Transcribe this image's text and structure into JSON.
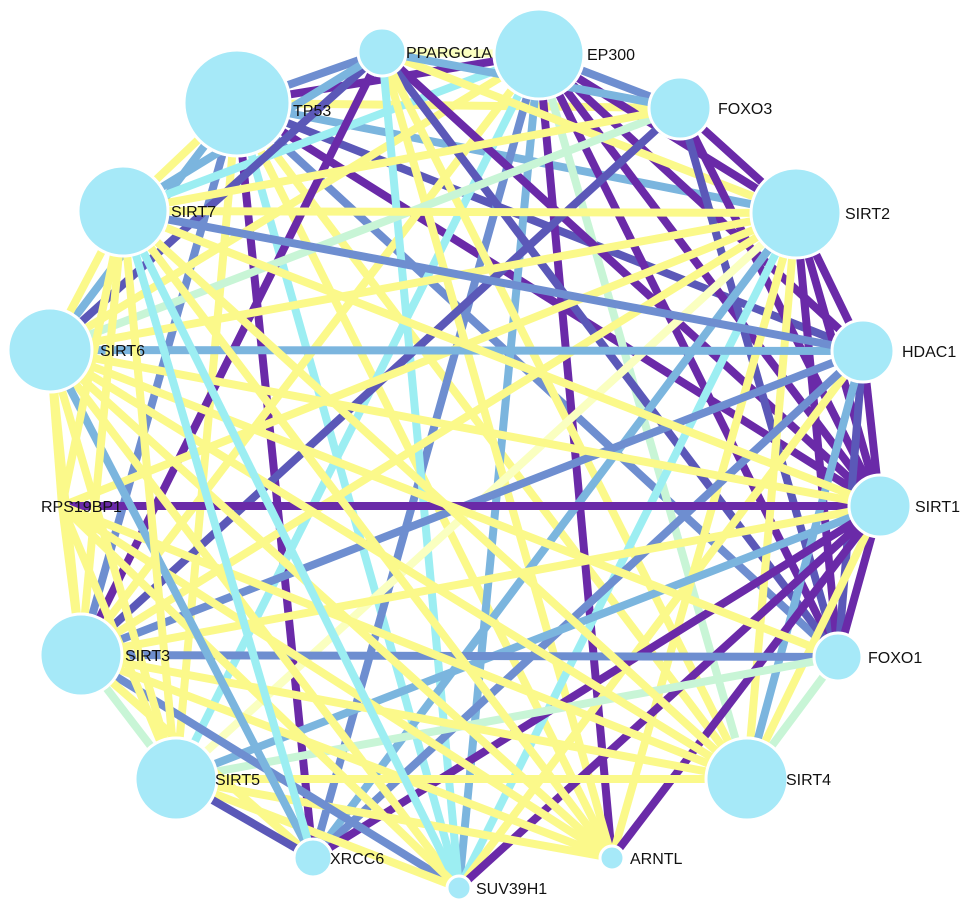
{
  "palette": {
    "node_fill": "#a6e9f8",
    "node_stroke": "#ffffff",
    "edge_colors": {
      "purple": "#6a2aa8",
      "indigo": "#5b58b8",
      "steel": "#6e8ed0",
      "sky": "#7bb5de",
      "cyan": "#9ceef2",
      "mint": "#c8f5d6",
      "cream": "#faffc0",
      "yellow": "#fbf98a"
    }
  },
  "nodes": [
    {
      "id": "PPARGC1A",
      "label": "PPARGC1A"
    },
    {
      "id": "EP300",
      "label": "EP300"
    },
    {
      "id": "FOXO3",
      "label": "FOXO3"
    },
    {
      "id": "SIRT2",
      "label": "SIRT2"
    },
    {
      "id": "HDAC1",
      "label": "HDAC1"
    },
    {
      "id": "SIRT1",
      "label": "SIRT1"
    },
    {
      "id": "FOXO1",
      "label": "FOXO1"
    },
    {
      "id": "SIRT4",
      "label": "SIRT4"
    },
    {
      "id": "ARNTL",
      "label": "ARNTL"
    },
    {
      "id": "SUV39H1",
      "label": "SUV39H1"
    },
    {
      "id": "XRCC6",
      "label": "XRCC6"
    },
    {
      "id": "SIRT5",
      "label": "SIRT5"
    },
    {
      "id": "SIRT3",
      "label": "SIRT3"
    },
    {
      "id": "RPS19BP1",
      "label": "RPS19BP1"
    },
    {
      "id": "SIRT6",
      "label": "SIRT6"
    },
    {
      "id": "SIRT7",
      "label": "SIRT7"
    },
    {
      "id": "TP53",
      "label": "TP53"
    }
  ],
  "edges": [
    [
      "TP53",
      "EP300",
      "purple"
    ],
    [
      "TP53",
      "SIRT1",
      "purple"
    ],
    [
      "TP53",
      "SIRT2",
      "sky"
    ],
    [
      "TP53",
      "HDAC1",
      "indigo"
    ],
    [
      "TP53",
      "FOXO3",
      "yellow"
    ],
    [
      "TP53",
      "FOXO1",
      "steel"
    ],
    [
      "TP53",
      "SIRT4",
      "yellow"
    ],
    [
      "TP53",
      "ARNTL",
      "yellow"
    ],
    [
      "TP53",
      "SUV39H1",
      "cyan"
    ],
    [
      "TP53",
      "XRCC6",
      "purple"
    ],
    [
      "TP53",
      "SIRT7",
      "yellow"
    ],
    [
      "TP53",
      "SIRT6",
      "sky"
    ],
    [
      "TP53",
      "SIRT3",
      "steel"
    ],
    [
      "TP53",
      "PPARGC1A",
      "steel"
    ],
    [
      "TP53",
      "SIRT5",
      "yellow"
    ],
    [
      "EP300",
      "SIRT1",
      "purple"
    ],
    [
      "EP300",
      "SIRT2",
      "purple"
    ],
    [
      "EP300",
      "FOXO3",
      "steel"
    ],
    [
      "EP300",
      "HDAC1",
      "purple"
    ],
    [
      "EP300",
      "FOXO1",
      "purple"
    ],
    [
      "EP300",
      "ARNTL",
      "purple"
    ],
    [
      "EP300",
      "SIRT7",
      "cyan"
    ],
    [
      "EP300",
      "SIRT6",
      "yellow"
    ],
    [
      "EP300",
      "SIRT3",
      "yellow"
    ],
    [
      "EP300",
      "XRCC6",
      "steel"
    ],
    [
      "EP300",
      "SUV39H1",
      "sky"
    ],
    [
      "EP300",
      "SIRT4",
      "mint"
    ],
    [
      "EP300",
      "PPARGC1A",
      "cream"
    ],
    [
      "EP300",
      "SIRT5",
      "cyan"
    ],
    [
      "PPARGC1A",
      "SIRT1",
      "purple"
    ],
    [
      "PPARGC1A",
      "SIRT2",
      "yellow"
    ],
    [
      "PPARGC1A",
      "FOXO1",
      "indigo"
    ],
    [
      "PPARGC1A",
      "FOXO3",
      "sky"
    ],
    [
      "PPARGC1A",
      "SIRT3",
      "purple"
    ],
    [
      "PPARGC1A",
      "SIRT4",
      "yellow"
    ],
    [
      "PPARGC1A",
      "SIRT6",
      "indigo"
    ],
    [
      "PPARGC1A",
      "SIRT7",
      "sky"
    ],
    [
      "PPARGC1A",
      "ARNTL",
      "yellow"
    ],
    [
      "PPARGC1A",
      "SUV39H1",
      "cyan"
    ],
    [
      "FOXO3",
      "SIRT1",
      "purple"
    ],
    [
      "FOXO3",
      "SIRT2",
      "purple"
    ],
    [
      "FOXO3",
      "FOXO1",
      "indigo"
    ],
    [
      "FOXO3",
      "SIRT3",
      "indigo"
    ],
    [
      "FOXO3",
      "SIRT6",
      "mint"
    ],
    [
      "FOXO3",
      "SIRT7",
      "yellow"
    ],
    [
      "SIRT2",
      "SIRT1",
      "purple"
    ],
    [
      "SIRT2",
      "HDAC1",
      "purple"
    ],
    [
      "SIRT2",
      "FOXO1",
      "purple"
    ],
    [
      "SIRT2",
      "SIRT7",
      "yellow"
    ],
    [
      "SIRT2",
      "SIRT6",
      "yellow"
    ],
    [
      "SIRT2",
      "SIRT3",
      "yellow"
    ],
    [
      "SIRT2",
      "SIRT5",
      "cream"
    ],
    [
      "SIRT2",
      "SIRT4",
      "yellow"
    ],
    [
      "SIRT2",
      "ARNTL",
      "yellow"
    ],
    [
      "SIRT2",
      "XRCC6",
      "sky"
    ],
    [
      "SIRT2",
      "SUV39H1",
      "cyan"
    ],
    [
      "SIRT2",
      "RPS19BP1",
      "yellow"
    ],
    [
      "HDAC1",
      "SIRT1",
      "purple"
    ],
    [
      "HDAC1",
      "SIRT6",
      "sky"
    ],
    [
      "HDAC1",
      "SIRT3",
      "steel"
    ],
    [
      "HDAC1",
      "FOXO1",
      "indigo"
    ],
    [
      "HDAC1",
      "SUV39H1",
      "yellow"
    ],
    [
      "HDAC1",
      "SIRT7",
      "steel"
    ],
    [
      "HDAC1",
      "XRCC6",
      "steel"
    ],
    [
      "HDAC1",
      "SIRT4",
      "sky"
    ],
    [
      "SIRT1",
      "RPS19BP1",
      "purple"
    ],
    [
      "SIRT1",
      "FOXO1",
      "purple"
    ],
    [
      "SIRT1",
      "SIRT3",
      "yellow"
    ],
    [
      "SIRT1",
      "SIRT6",
      "yellow"
    ],
    [
      "SIRT1",
      "SIRT7",
      "yellow"
    ],
    [
      "SIRT1",
      "SIRT5",
      "sky"
    ],
    [
      "SIRT1",
      "SIRT4",
      "yellow"
    ],
    [
      "SIRT1",
      "ARNTL",
      "purple"
    ],
    [
      "SIRT1",
      "XRCC6",
      "purple"
    ],
    [
      "SIRT1",
      "SUV39H1",
      "purple"
    ],
    [
      "FOXO1",
      "SIRT3",
      "steel"
    ],
    [
      "FOXO1",
      "SIRT6",
      "yellow"
    ],
    [
      "FOXO1",
      "SIRT4",
      "mint"
    ],
    [
      "FOXO1",
      "SIRT5",
      "mint"
    ],
    [
      "SIRT4",
      "SIRT3",
      "yellow"
    ],
    [
      "SIRT4",
      "SIRT6",
      "yellow"
    ],
    [
      "SIRT4",
      "SIRT7",
      "yellow"
    ],
    [
      "SIRT4",
      "SIRT5",
      "yellow"
    ],
    [
      "SIRT4",
      "RPS19BP1",
      "yellow"
    ],
    [
      "ARNTL",
      "SIRT6",
      "yellow"
    ],
    [
      "ARNTL",
      "SIRT3",
      "yellow"
    ],
    [
      "ARNTL",
      "SIRT7",
      "yellow"
    ],
    [
      "ARNTL",
      "SIRT5",
      "yellow"
    ],
    [
      "ARNTL",
      "RPS19BP1",
      "yellow"
    ],
    [
      "SUV39H1",
      "SIRT3",
      "steel"
    ],
    [
      "SUV39H1",
      "SIRT6",
      "yellow"
    ],
    [
      "SUV39H1",
      "SIRT7",
      "cyan"
    ],
    [
      "SUV39H1",
      "RPS19BP1",
      "yellow"
    ],
    [
      "SUV39H1",
      "SIRT5",
      "yellow"
    ],
    [
      "XRCC6",
      "SIRT6",
      "sky"
    ],
    [
      "XRCC6",
      "SIRT3",
      "yellow"
    ],
    [
      "XRCC6",
      "SIRT7",
      "cyan"
    ],
    [
      "XRCC6",
      "SIRT5",
      "indigo"
    ],
    [
      "SIRT5",
      "SIRT6",
      "yellow"
    ],
    [
      "SIRT5",
      "SIRT3",
      "mint"
    ],
    [
      "SIRT5",
      "SIRT7",
      "yellow"
    ],
    [
      "SIRT5",
      "RPS19BP1",
      "yellow"
    ],
    [
      "SIRT3",
      "SIRT6",
      "yellow"
    ],
    [
      "SIRT3",
      "SIRT7",
      "yellow"
    ],
    [
      "SIRT3",
      "RPS19BP1",
      "yellow"
    ],
    [
      "RPS19BP1",
      "SIRT6",
      "yellow"
    ],
    [
      "RPS19BP1",
      "SIRT7",
      "yellow"
    ],
    [
      "SIRT6",
      "SIRT7",
      "yellow"
    ]
  ]
}
